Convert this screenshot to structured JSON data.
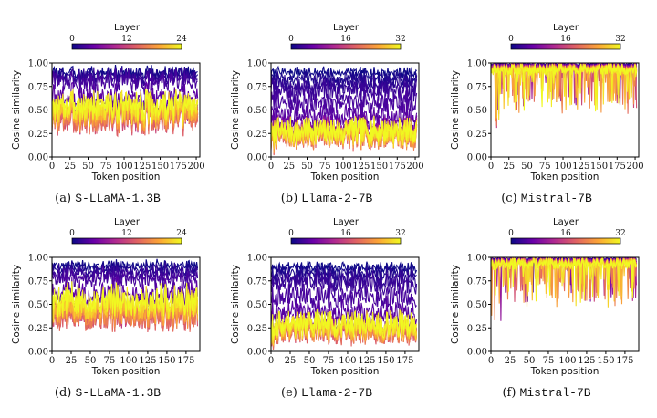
{
  "chart_data": [
    {
      "id": "a",
      "type": "line",
      "caption_prefix": "(a)",
      "caption_model": "S-LLaMA-1.3B",
      "layers": 24,
      "colorbar_label": "Layer",
      "colorbar_ticks": [
        "0",
        "12",
        "24"
      ],
      "xlabel": "Token position",
      "ylabel": "Cosine similarity",
      "xlim": [
        0,
        205
      ],
      "ylim": [
        0,
        1
      ],
      "xticks": [
        "0",
        "25",
        "50",
        "75",
        "100",
        "125",
        "150",
        "175",
        "200"
      ],
      "yticks": [
        "0.00",
        "0.25",
        "0.50",
        "0.75",
        "1.00"
      ],
      "profile": [
        [
          0,
          0.9,
          0.05
        ],
        [
          0.12,
          0.82,
          0.08
        ],
        [
          0.2,
          0.5,
          0.13
        ],
        [
          0.6,
          0.4,
          0.12
        ],
        [
          1,
          0.55,
          0.12
        ]
      ],
      "dip_rate": 0.0,
      "seed": 3
    },
    {
      "id": "b",
      "type": "line",
      "caption_prefix": "(b)",
      "caption_model": "Llama-2-7B",
      "layers": 32,
      "colorbar_label": "Layer",
      "colorbar_ticks": [
        "0",
        "16",
        "32"
      ],
      "xlabel": "Token position",
      "ylabel": "Cosine similarity",
      "xlim": [
        0,
        205
      ],
      "ylim": [
        0,
        1
      ],
      "xticks": [
        "0",
        "25",
        "50",
        "75",
        "100",
        "125",
        "150",
        "175",
        "200"
      ],
      "yticks": [
        "0.00",
        "0.25",
        "0.50",
        "0.75",
        "1.00"
      ],
      "profile": [
        [
          0,
          0.9,
          0.04
        ],
        [
          0.1,
          0.7,
          0.1
        ],
        [
          0.18,
          0.32,
          0.1
        ],
        [
          0.6,
          0.22,
          0.1
        ],
        [
          1,
          0.28,
          0.1
        ]
      ],
      "dip_rate": 0.0,
      "seed": 7
    },
    {
      "id": "c",
      "type": "line",
      "caption_prefix": "(c)",
      "caption_model": "Mistral-7B",
      "layers": 32,
      "colorbar_label": "Layer",
      "colorbar_ticks": [
        "0",
        "16",
        "32"
      ],
      "xlabel": "Token position",
      "ylabel": "Cosine similarity",
      "xlim": [
        0,
        205
      ],
      "ylim": [
        0,
        1
      ],
      "xticks": [
        "0",
        "25",
        "50",
        "75",
        "100",
        "125",
        "150",
        "175",
        "200"
      ],
      "yticks": [
        "0.00",
        "0.25",
        "0.50",
        "0.75",
        "1.00"
      ],
      "profile": [
        [
          0,
          0.99,
          0.01
        ],
        [
          0.5,
          0.95,
          0.03
        ],
        [
          1,
          0.93,
          0.04
        ]
      ],
      "dip_rate": 0.05,
      "seed": 11
    },
    {
      "id": "d",
      "type": "line",
      "caption_prefix": "(d)",
      "caption_model": "S-LLaMA-1.3B",
      "layers": 24,
      "colorbar_label": "Layer",
      "colorbar_ticks": [
        "0",
        "12",
        "24"
      ],
      "xlabel": "Token position",
      "ylabel": "Cosine similarity",
      "xlim": [
        0,
        193
      ],
      "ylim": [
        0,
        1
      ],
      "xticks": [
        "0",
        "25",
        "50",
        "75",
        "100",
        "125",
        "150",
        "175"
      ],
      "yticks": [
        "0.00",
        "0.25",
        "0.50",
        "0.75",
        "1.00"
      ],
      "profile": [
        [
          0,
          0.92,
          0.04
        ],
        [
          0.12,
          0.8,
          0.08
        ],
        [
          0.2,
          0.5,
          0.13
        ],
        [
          0.6,
          0.38,
          0.12
        ],
        [
          1,
          0.55,
          0.12
        ]
      ],
      "dip_rate": 0.0,
      "seed": 5
    },
    {
      "id": "e",
      "type": "line",
      "caption_prefix": "(e)",
      "caption_model": "Llama-2-7B",
      "layers": 32,
      "colorbar_label": "Layer",
      "colorbar_ticks": [
        "0",
        "16",
        "32"
      ],
      "xlabel": "Token position",
      "ylabel": "Cosine similarity",
      "xlim": [
        0,
        193
      ],
      "ylim": [
        0,
        1
      ],
      "xticks": [
        "0",
        "25",
        "50",
        "75",
        "100",
        "125",
        "150",
        "175"
      ],
      "yticks": [
        "0.00",
        "0.25",
        "0.50",
        "0.75",
        "1.00"
      ],
      "profile": [
        [
          0,
          0.9,
          0.04
        ],
        [
          0.1,
          0.72,
          0.1
        ],
        [
          0.18,
          0.3,
          0.1
        ],
        [
          0.6,
          0.22,
          0.1
        ],
        [
          1,
          0.3,
          0.1
        ]
      ],
      "dip_rate": 0.0,
      "seed": 9
    },
    {
      "id": "f",
      "type": "line",
      "caption_prefix": "(f)",
      "caption_model": "Mistral-7B",
      "layers": 32,
      "colorbar_label": "Layer",
      "colorbar_ticks": [
        "0",
        "16",
        "32"
      ],
      "xlabel": "Token position",
      "ylabel": "Cosine similarity",
      "xlim": [
        0,
        193
      ],
      "ylim": [
        0,
        1
      ],
      "xticks": [
        "0",
        "25",
        "50",
        "75",
        "100",
        "125",
        "150",
        "175"
      ],
      "yticks": [
        "0.00",
        "0.25",
        "0.50",
        "0.75",
        "1.00"
      ],
      "profile": [
        [
          0,
          0.99,
          0.01
        ],
        [
          0.5,
          0.95,
          0.03
        ],
        [
          1,
          0.93,
          0.04
        ]
      ],
      "dip_rate": 0.05,
      "seed": 13
    }
  ],
  "colormap": [
    "#0d0887",
    "#6a00a8",
    "#b12a90",
    "#e16462",
    "#fca636",
    "#f0f921"
  ]
}
